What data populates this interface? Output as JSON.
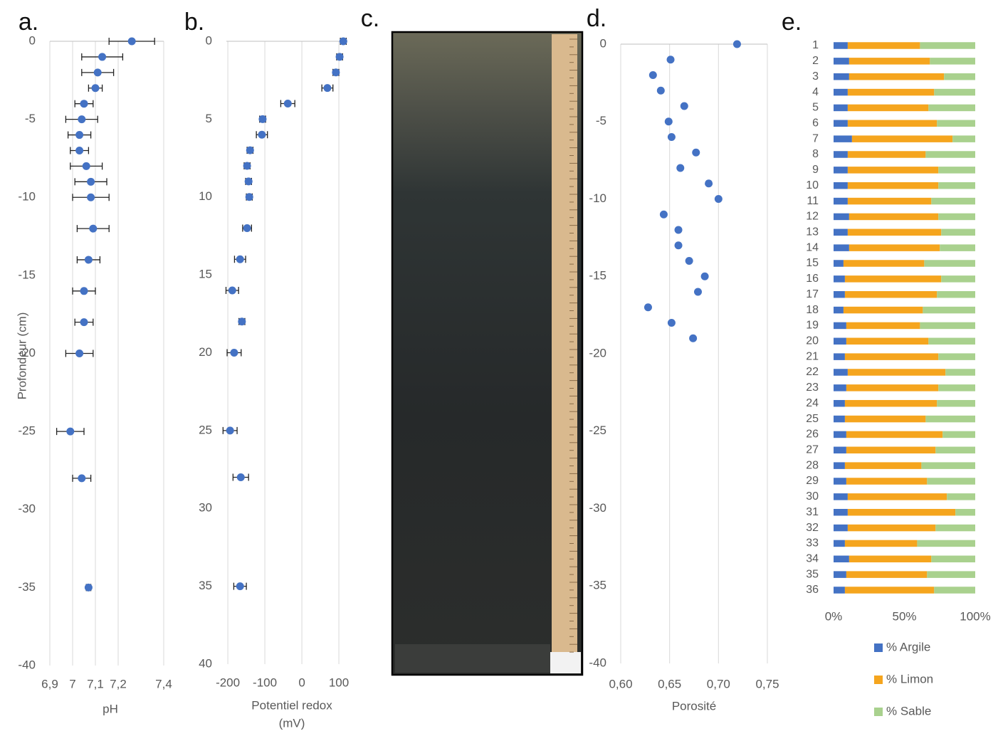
{
  "chart_data": [
    {
      "type": "scatter",
      "title": "a.",
      "xlabel": "pH",
      "ylabel": "Profondeur (cm)",
      "x": [
        7.26,
        7.13,
        7.11,
        7.1,
        7.05,
        7.04,
        7.03,
        7.03,
        7.06,
        7.08,
        7.08,
        7.09,
        7.07,
        7.05,
        7.05,
        7.03,
        6.99,
        7.04,
        7.07
      ],
      "xerr": [
        0.1,
        0.09,
        0.07,
        0.03,
        0.04,
        0.07,
        0.05,
        0.04,
        0.07,
        0.07,
        0.08,
        0.07,
        0.05,
        0.05,
        0.04,
        0.06,
        0.06,
        0.04,
        0.01
      ],
      "y": [
        0,
        -1,
        -2,
        -3,
        -4,
        -5,
        -6,
        -7,
        -8,
        -9,
        -10,
        -12,
        -14,
        -16,
        -18,
        -20,
        -25,
        -28,
        -35
      ],
      "color": "#4472c4",
      "xlim": [
        6.9,
        7.4
      ],
      "xticks": [
        {
          "value": 6.9,
          "label": "6,9"
        },
        7,
        {
          "value": 7.1,
          "label": "7,1"
        },
        {
          "value": 7.2,
          "label": "7,2"
        },
        {
          "value": 7.4,
          "label": "7,4"
        }
      ],
      "ylim": [
        -40,
        0
      ],
      "yticks": [
        0,
        -5,
        -10,
        -15,
        -20,
        -25,
        -30,
        -35,
        -40
      ],
      "y_reversed": false,
      "grid": true
    },
    {
      "type": "scatter",
      "title": "b.",
      "xlabel": [
        "Potentiel redox",
        "(mV)"
      ],
      "x": [
        112,
        102,
        92,
        69,
        -38,
        -106,
        -108,
        -140,
        -148,
        -144,
        -142,
        -148,
        -167,
        -188,
        -162,
        -183,
        -194,
        -165,
        -167
      ],
      "xerr": [
        8,
        8,
        8,
        15,
        19,
        8,
        15,
        8,
        8,
        8,
        8,
        12,
        15,
        17,
        8,
        19,
        19,
        21,
        17
      ],
      "y": [
        0,
        1,
        2,
        3,
        4,
        5,
        6,
        7,
        8,
        9,
        10,
        12,
        14,
        16,
        18,
        20,
        25,
        28,
        35
      ],
      "color": "#4472c4",
      "xlim": [
        -204,
        123
      ],
      "xticks": [
        -200,
        -100,
        0,
        100
      ],
      "ylim": [
        0,
        40
      ],
      "yticks": [
        0,
        5,
        10,
        15,
        20,
        25,
        30,
        35,
        40
      ],
      "y_reversed": true,
      "grid": true
    },
    {
      "type": "image",
      "title": "c."
    },
    {
      "type": "scatter",
      "title": "d.",
      "xlabel": "Porosité",
      "x": [
        0.719,
        0.651,
        0.633,
        0.641,
        0.665,
        0.649,
        0.652,
        0.677,
        0.661,
        0.69,
        0.7,
        0.644,
        0.659,
        0.659,
        0.67,
        0.686,
        0.679,
        0.628,
        0.652,
        0.674
      ],
      "y": [
        0,
        -1,
        -2,
        -3,
        -4,
        -5,
        -6,
        -7,
        -8,
        -9,
        -10,
        -11,
        -12,
        -13,
        -14,
        -15,
        -16,
        -17,
        -18,
        -19
      ],
      "color": "#4472c4",
      "xlim": [
        0.6,
        0.75
      ],
      "xticks": [
        {
          "value": 0.6,
          "label": "0,60"
        },
        {
          "value": 0.65,
          "label": "0,65"
        },
        {
          "value": 0.7,
          "label": "0,70"
        },
        {
          "value": 0.75,
          "label": "0,75"
        }
      ],
      "ylim": [
        -40,
        0
      ],
      "yticks": [
        0,
        -5,
        -10,
        -15,
        -20,
        -25,
        -30,
        -35,
        -40
      ],
      "y_reversed": false,
      "grid": true
    },
    {
      "type": "bar",
      "title": "e.",
      "orientation": "horizontal",
      "stacked": true,
      "legend": "bottom",
      "categories": [
        "1",
        "2",
        "3",
        "4",
        "5",
        "6",
        "7",
        "8",
        "9",
        "10",
        "11",
        "12",
        "13",
        "14",
        "15",
        "16",
        "17",
        "18",
        "19",
        "20",
        "21",
        "22",
        "23",
        "24",
        "25",
        "26",
        "27",
        "28",
        "29",
        "30",
        "31",
        "32",
        "33",
        "34",
        "35",
        "36"
      ],
      "series": [
        {
          "name": "% Argile",
          "color": "#4472c4",
          "values": [
            10,
            11,
            11,
            10,
            10,
            10,
            13,
            10,
            10,
            10,
            10,
            11,
            10,
            11,
            7,
            8,
            8,
            7,
            9,
            9,
            8,
            10,
            9,
            8,
            8,
            9,
            9,
            8,
            9,
            10,
            10,
            10,
            8,
            11,
            9,
            8
          ]
        },
        {
          "name": "% Limon",
          "color": "#f5a51e",
          "values": [
            51,
            57,
            67,
            61,
            57,
            63,
            71,
            55,
            64,
            64,
            59,
            63,
            66,
            64,
            57,
            68,
            65,
            56,
            52,
            58,
            66,
            69,
            65,
            65,
            57,
            68,
            63,
            54,
            57,
            70,
            76,
            62,
            51,
            58,
            57,
            63
          ]
        },
        {
          "name": "% Sable",
          "color": "#a9d18e",
          "values": [
            39,
            32,
            22,
            29,
            33,
            27,
            16,
            35,
            26,
            26,
            31,
            26,
            24,
            25,
            36,
            24,
            27,
            37,
            39,
            33,
            26,
            21,
            26,
            27,
            35,
            23,
            28,
            38,
            34,
            20,
            14,
            28,
            41,
            31,
            34,
            29
          ]
        }
      ],
      "xlim": [
        0,
        100
      ],
      "xticks": [
        {
          "value": 0,
          "label": "0%"
        },
        {
          "value": 50,
          "label": "50%"
        },
        {
          "value": 100,
          "label": "100%"
        }
      ]
    }
  ]
}
